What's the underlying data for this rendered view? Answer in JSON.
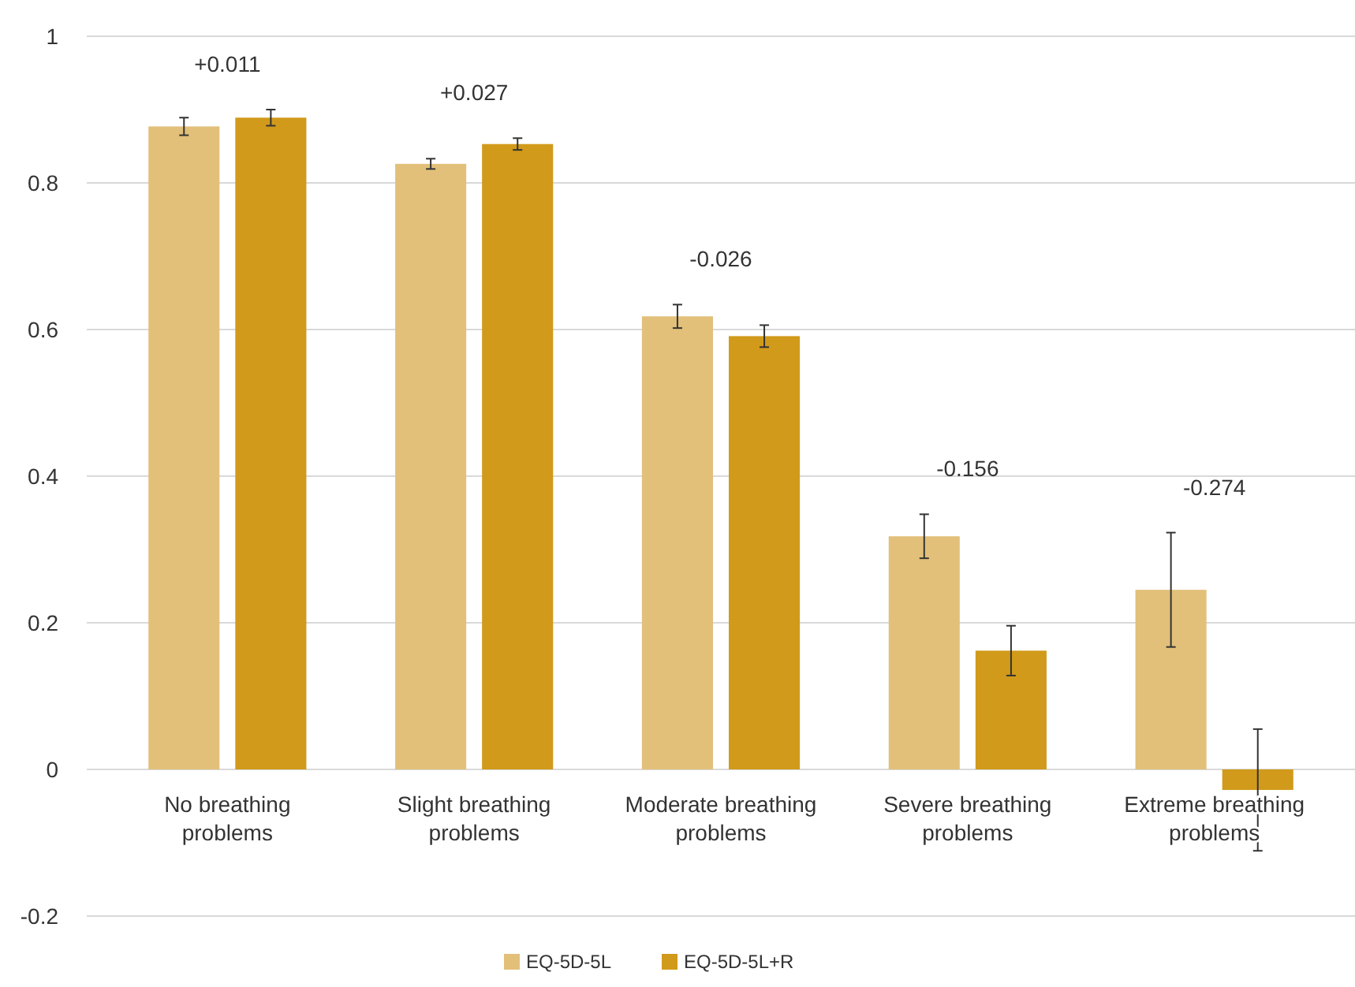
{
  "chart_data": {
    "type": "bar",
    "categories": [
      "No breathing problems",
      "Slight breathing problems",
      "Moderate breathing problems",
      "Severe breathing problems",
      "Extreme breathing problems"
    ],
    "series": [
      {
        "name": "EQ-5D-5L",
        "color": "#e2c07a",
        "values": [
          0.877,
          0.826,
          0.618,
          0.318,
          0.245
        ],
        "errors": [
          0.012,
          0.007,
          0.016,
          0.03,
          0.078
        ]
      },
      {
        "name": "EQ-5D-5L+R",
        "color": "#d19a1b",
        "values": [
          0.889,
          0.853,
          0.591,
          0.162,
          -0.028
        ],
        "errors": [
          0.011,
          0.008,
          0.015,
          0.034,
          0.083
        ]
      }
    ],
    "ylim": [
      -0.2,
      1
    ],
    "yticks": [
      -0.2,
      0,
      0.2,
      0.4,
      0.6,
      0.8,
      1
    ],
    "grid": "y",
    "legend": "bottom",
    "annotations": [
      "+0.011",
      "+0.027",
      "-0.026",
      "-0.156",
      "-0.274"
    ]
  }
}
